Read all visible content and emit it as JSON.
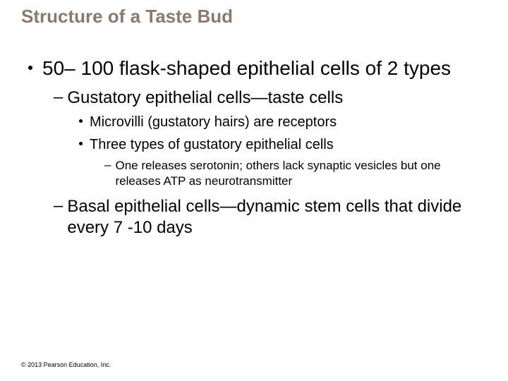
{
  "title": {
    "text": "Structure of a Taste Bud",
    "color": "#8a7a6e",
    "fontsize": 26
  },
  "bullets": {
    "l1": {
      "text": "50– 100 flask-shaped epithelial cells of 2 types",
      "fontsize": 28
    },
    "l2a": {
      "text": "Gustatory epithelial cells—taste cells",
      "fontsize": 24
    },
    "l3a": {
      "text": "Microvilli (gustatory hairs) are receptors",
      "fontsize": 20
    },
    "l3b": {
      "text": "Three types of gustatory epithelial cells",
      "fontsize": 20
    },
    "l4a": {
      "text": "One releases serotonin; others lack synaptic vesicles but one releases ATP as neurotransmitter",
      "fontsize": 17
    },
    "l2b": {
      "text": "Basal epithelial cells—dynamic stem cells that divide every 7 -10 days",
      "fontsize": 24
    }
  },
  "copyright": {
    "text": "© 2013 Pearson Education, Inc.",
    "fontsize": 9
  },
  "styles": {
    "title_color": "#8a7a6e",
    "body_color": "#000000",
    "background": "#ffffff"
  }
}
